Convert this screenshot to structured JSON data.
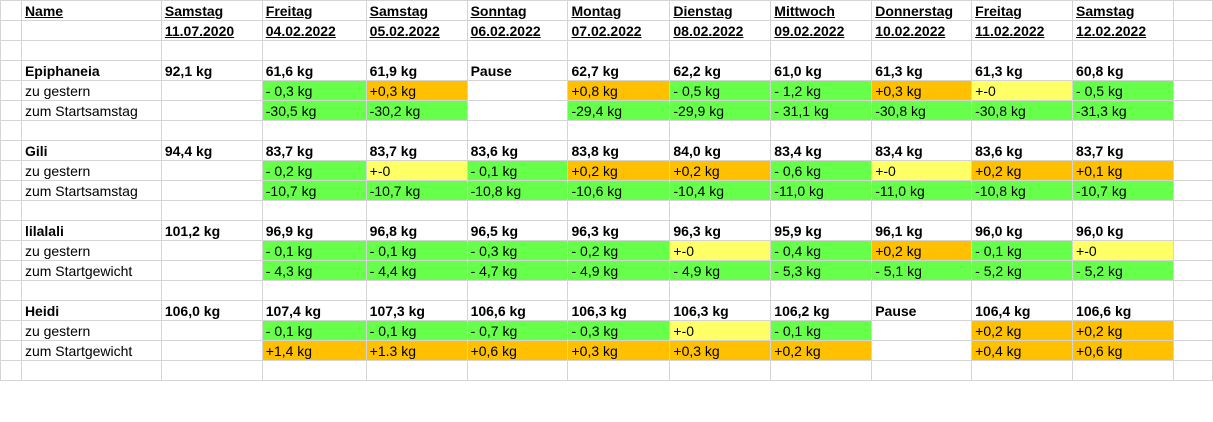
{
  "header": {
    "name_label": "Name",
    "days": [
      "Samstag",
      "Freitag",
      "Samstag",
      "Sonntag",
      "Montag",
      "Dienstag",
      "Mittwoch",
      "Donnerstag",
      "Freitag",
      "Samstag"
    ],
    "dates": [
      "11.07.2020",
      "04.02.2022",
      "05.02.2022",
      "06.02.2022",
      "07.02.2022",
      "08.02.2022",
      "09.02.2022",
      "10.02.2022",
      "11.02.2022",
      "12.02.2022"
    ]
  },
  "colors": {
    "green": "#66ff4a",
    "orange": "#ffc000",
    "yellow": "#ffff66",
    "grid": "#d4d4d4"
  },
  "persons": [
    {
      "name": "Epiphaneia",
      "weights": [
        "92,1 kg",
        "61,6 kg",
        "61,9 kg",
        "Pause",
        "62,7 kg",
        "62,2 kg",
        "61,0 kg",
        "61,3 kg",
        "61,3 kg",
        "60,8 kg"
      ],
      "diff_label": "zu gestern",
      "diff": [
        "",
        "- 0,3 kg",
        "+0,3 kg",
        "",
        "+0,8 kg",
        "- 0,5 kg",
        "- 1,2 kg",
        "+0,3 kg",
        "+-0",
        "- 0,5 kg"
      ],
      "diff_colors": [
        "",
        "g",
        "o",
        "",
        "o",
        "g",
        "g",
        "o",
        "y",
        "g"
      ],
      "total_label": "zum Startsamstag",
      "total": [
        "",
        "-30,5 kg",
        "-30,2 kg",
        "",
        "-29,4 kg",
        "-29,9 kg",
        "- 31,1 kg",
        "-30,8 kg",
        "-30,8 kg",
        "-31,3 kg"
      ],
      "total_colors": [
        "",
        "g",
        "g",
        "",
        "g",
        "g",
        "g",
        "g",
        "g",
        "g"
      ]
    },
    {
      "name": "Gili",
      "weights": [
        "94,4 kg",
        "83,7 kg",
        "83,7 kg",
        "83,6 kg",
        "83,8 kg",
        "84,0 kg",
        "83,4 kg",
        "83,4 kg",
        "83,6 kg",
        "83,7 kg"
      ],
      "diff_label": "zu gestern",
      "diff": [
        "",
        "- 0,2 kg",
        "+-0",
        "- 0,1 kg",
        "+0,2 kg",
        "+0,2 kg",
        "- 0,6 kg",
        "+-0",
        "+0,2 kg",
        "+0,1 kg"
      ],
      "diff_colors": [
        "",
        "g",
        "y",
        "g",
        "o",
        "o",
        "g",
        "y",
        "o",
        "o"
      ],
      "total_label": "zum Startsamstag",
      "total": [
        "",
        "-10,7 kg",
        "-10,7 kg",
        "-10,8 kg",
        "-10,6 kg",
        "-10,4 kg",
        "-11,0 kg",
        "-11,0 kg",
        "-10,8 kg",
        "-10,7 kg"
      ],
      "total_colors": [
        "",
        "g",
        "g",
        "g",
        "g",
        "g",
        "g",
        "g",
        "g",
        "g"
      ]
    },
    {
      "name": "lilalali",
      "weights": [
        "101,2 kg",
        "96,9 kg",
        "96,8 kg",
        "96,5 kg",
        "96,3 kg",
        "96,3 kg",
        "95,9 kg",
        "96,1 kg",
        "96,0 kg",
        "96,0 kg"
      ],
      "diff_label": "zu gestern",
      "diff": [
        "",
        "- 0,1 kg",
        "- 0,1 kg",
        "- 0,3 kg",
        "- 0,2 kg",
        "+-0",
        "- 0,4 kg",
        "+0,2 kg",
        "- 0,1 kg",
        "+-0"
      ],
      "diff_colors": [
        "",
        "g",
        "g",
        "g",
        "g",
        "y",
        "g",
        "o",
        "g",
        "y"
      ],
      "total_label": "zum Startgewicht",
      "total": [
        "",
        "- 4,3 kg",
        "- 4,4 kg",
        "- 4,7 kg",
        "- 4,9 kg",
        "- 4,9 kg",
        "- 5,3 kg",
        "- 5,1 kg",
        "- 5,2 kg",
        "- 5,2 kg"
      ],
      "total_colors": [
        "",
        "g",
        "g",
        "g",
        "g",
        "g",
        "g",
        "g",
        "g",
        "g"
      ]
    },
    {
      "name": "Heidi",
      "weights": [
        "106,0 kg",
        "107,4 kg",
        "107,3 kg",
        "106,6 kg",
        "106,3 kg",
        "106,3 kg",
        "106,2 kg",
        "Pause",
        "106,4 kg",
        "106,6 kg"
      ],
      "diff_label": "zu gestern",
      "diff": [
        "",
        "- 0,1 kg",
        "- 0,1 kg",
        "- 0,7 kg",
        "- 0,3 kg",
        "+-0",
        "- 0,1 kg",
        "",
        "+0,2 kg",
        "+0,2 kg"
      ],
      "diff_colors": [
        "",
        "g",
        "g",
        "g",
        "g",
        "y",
        "g",
        "",
        "o",
        "o"
      ],
      "total_label": "zum Startgewicht",
      "total": [
        "",
        "+1,4 kg",
        "+1.3 kg",
        "+0,6 kg",
        "+0,3 kg",
        "+0,3 kg",
        "+0,2 kg",
        "",
        "+0,4 kg",
        "+0,6 kg"
      ],
      "total_colors": [
        "",
        "o",
        "o",
        "o",
        "o",
        "o",
        "o",
        "",
        "o",
        "o"
      ]
    }
  ]
}
